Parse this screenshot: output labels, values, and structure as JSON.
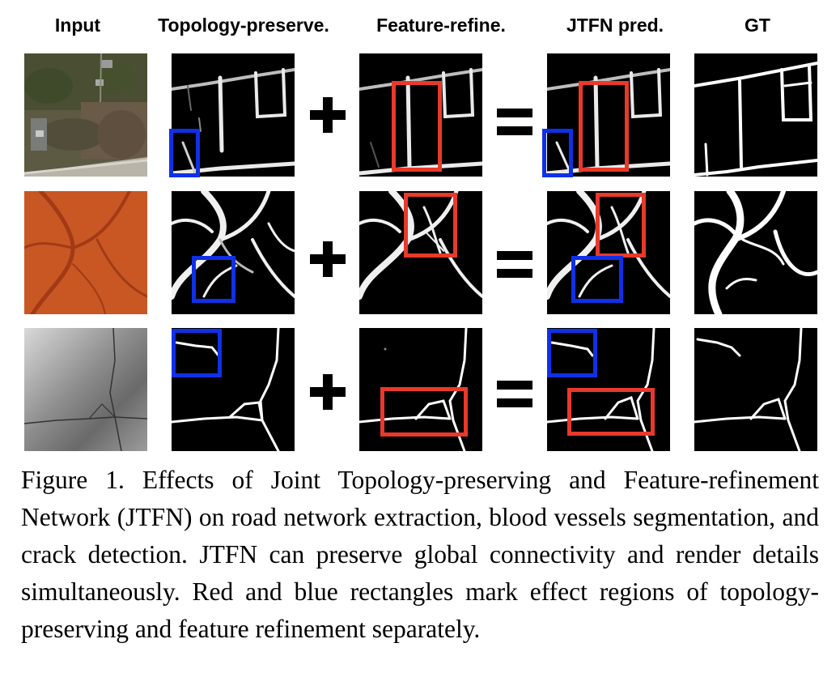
{
  "columns": {
    "input": "Input",
    "topology": "Topology-preserve.",
    "feature": "Feature-refine.",
    "jtfn": "JTFN pred.",
    "gt": "GT"
  },
  "operators": {
    "plus": "+",
    "equals": "="
  },
  "rows": [
    "road network",
    "blood vessels",
    "crack"
  ],
  "colors": {
    "red_box": "#e8392b",
    "blue_box": "#1030e6",
    "retina": "#c4521f",
    "background": "#000000"
  },
  "caption": "Figure 1. Effects of Joint Topology-preserving and Feature-refinement Network (JTFN) on road network extraction, blood vessels segmentation, and crack detection.  JTFN can preserve global connectivity and render details simultaneously.  Red and blue rectangles mark effect regions of topology-preserving and feature refinement separately."
}
